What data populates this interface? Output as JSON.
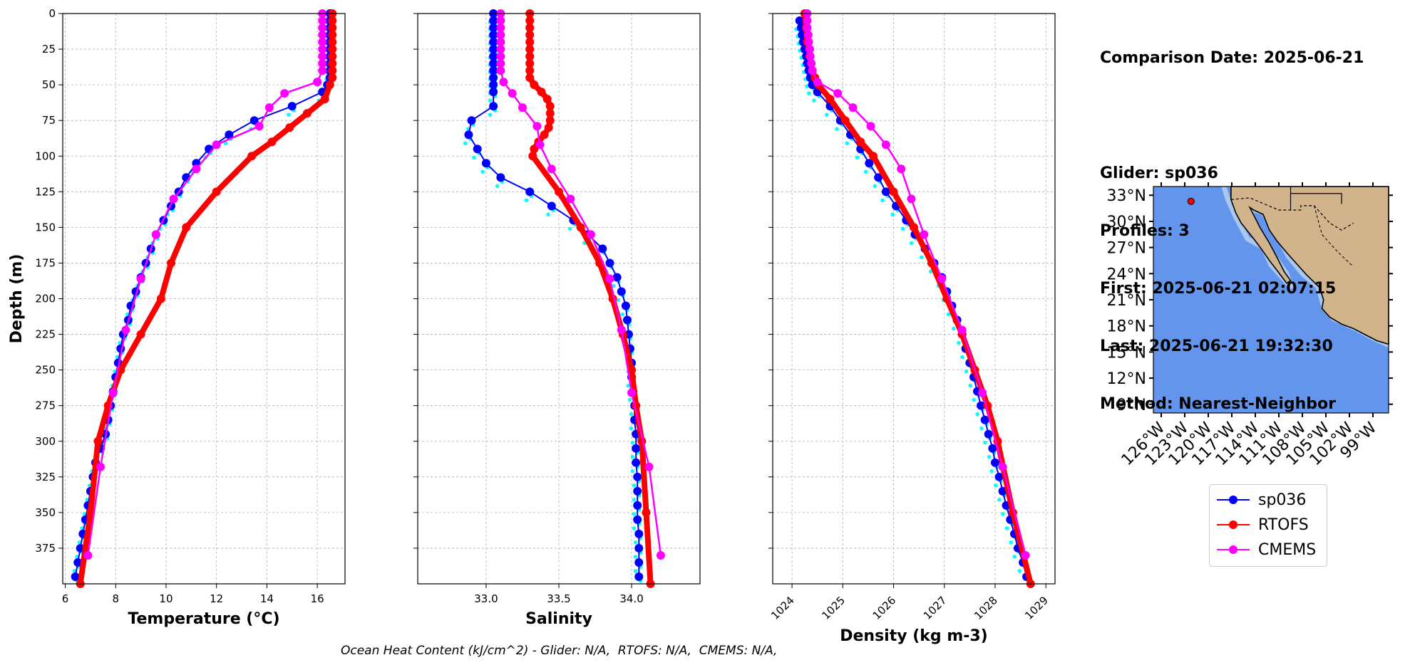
{
  "info": {
    "comparison_date": "Comparison Date: 2025-06-21",
    "glider": "Glider: sp036",
    "profiles": "Profiles: 3",
    "first": "First: 2025-06-21 02:07:15",
    "last": "Last: 2025-06-21 19:32:30",
    "method": "Method: Nearest-Neighbor"
  },
  "footer": "Ocean Heat Content (kJ/cm^2) - Glider: N/A,  RTOFS: N/A,  CMEMS: N/A,",
  "legend": [
    {
      "name": "sp036",
      "color": "#0000ff"
    },
    {
      "name": "RTOFS",
      "color": "#ff0000"
    },
    {
      "name": "CMEMS",
      "color": "#ff00ff"
    }
  ],
  "colors": {
    "glider": "#0000ff",
    "glider_dots": "#00ffff",
    "rtofs": "#ff0000",
    "cmems": "#ff00ff",
    "ocean": "#6495ed",
    "land": "#d2b48c",
    "shelf": "#a8c8f0"
  },
  "chart_data": [
    {
      "type": "line",
      "xlabel": "Temperature (°C)",
      "ylabel": "Depth (m)",
      "xlim": [
        5.9,
        17.1
      ],
      "ylim": [
        400,
        0
      ],
      "xticks": [
        "6",
        "8",
        "10",
        "12",
        "14",
        "16"
      ],
      "yticks": [
        "0",
        "25",
        "50",
        "75",
        "100",
        "125",
        "150",
        "175",
        "200",
        "225",
        "250",
        "275",
        "300",
        "325",
        "350",
        "375"
      ],
      "grid": true,
      "series": [
        {
          "name": "sp036",
          "depth": [
            0,
            5,
            10,
            15,
            20,
            25,
            30,
            35,
            40,
            45,
            50,
            55,
            65,
            75,
            85,
            95,
            105,
            115,
            125,
            135,
            145,
            155,
            165,
            175,
            185,
            195,
            205,
            215,
            225,
            235,
            245,
            255,
            265,
            275,
            285,
            295,
            305,
            315,
            325,
            335,
            345,
            355,
            365,
            375,
            385,
            395
          ],
          "values": [
            16.5,
            16.5,
            16.5,
            16.5,
            16.5,
            16.5,
            16.5,
            16.5,
            16.5,
            16.5,
            16.4,
            16.2,
            15.0,
            13.5,
            12.5,
            11.7,
            11.2,
            10.8,
            10.5,
            10.2,
            9.9,
            9.6,
            9.4,
            9.2,
            9.0,
            8.8,
            8.6,
            8.5,
            8.3,
            8.2,
            8.1,
            8.0,
            7.9,
            7.8,
            7.7,
            7.6,
            7.4,
            7.2,
            7.1,
            7.0,
            6.9,
            6.8,
            6.7,
            6.6,
            6.5,
            6.4
          ]
        },
        {
          "name": "RTOFS",
          "depth": [
            0,
            5,
            10,
            15,
            20,
            25,
            30,
            35,
            40,
            45,
            50,
            60,
            70,
            80,
            90,
            100,
            125,
            150,
            175,
            200,
            225,
            250,
            275,
            300,
            350,
            400
          ],
          "values": [
            16.6,
            16.6,
            16.6,
            16.6,
            16.6,
            16.6,
            16.6,
            16.6,
            16.6,
            16.6,
            16.5,
            16.3,
            15.6,
            14.9,
            14.2,
            13.4,
            12.0,
            10.8,
            10.2,
            9.8,
            9.0,
            8.2,
            7.7,
            7.3,
            7.0,
            6.6
          ]
        },
        {
          "name": "CMEMS",
          "depth": [
            0,
            5,
            10,
            15,
            20,
            25,
            30,
            35,
            40,
            48,
            56,
            66,
            79,
            92,
            109,
            130,
            155,
            186,
            222,
            266,
            318,
            380
          ],
          "values": [
            16.2,
            16.2,
            16.2,
            16.2,
            16.2,
            16.2,
            16.2,
            16.2,
            16.2,
            16.0,
            14.7,
            14.1,
            13.7,
            12.0,
            11.2,
            10.3,
            9.6,
            9.0,
            8.4,
            7.9,
            7.4,
            6.9
          ]
        }
      ]
    },
    {
      "type": "line",
      "xlabel": "Salinity",
      "xlim": [
        32.53,
        34.47
      ],
      "ylim": [
        400,
        0
      ],
      "xticks": [
        "33.0",
        "33.5",
        "34.0"
      ],
      "grid": true,
      "series": [
        {
          "name": "sp036",
          "depth": [
            0,
            5,
            10,
            15,
            20,
            25,
            30,
            35,
            40,
            45,
            50,
            55,
            65,
            75,
            85,
            95,
            105,
            115,
            125,
            135,
            145,
            155,
            165,
            175,
            185,
            195,
            205,
            215,
            225,
            235,
            245,
            255,
            265,
            275,
            285,
            295,
            305,
            315,
            325,
            335,
            345,
            355,
            365,
            375,
            385,
            395
          ],
          "values": [
            33.05,
            33.05,
            33.05,
            33.05,
            33.05,
            33.05,
            33.05,
            33.05,
            33.05,
            33.05,
            33.05,
            33.05,
            33.05,
            32.9,
            32.88,
            32.94,
            33.0,
            33.1,
            33.3,
            33.45,
            33.6,
            33.7,
            33.8,
            33.85,
            33.9,
            33.93,
            33.96,
            33.97,
            33.98,
            33.99,
            34.0,
            34.0,
            34.01,
            34.02,
            34.02,
            34.03,
            34.03,
            34.03,
            34.04,
            34.04,
            34.04,
            34.04,
            34.05,
            34.05,
            34.05,
            34.05
          ]
        },
        {
          "name": "RTOFS",
          "depth": [
            0,
            5,
            10,
            15,
            20,
            25,
            30,
            35,
            40,
            45,
            50,
            55,
            60,
            65,
            70,
            75,
            80,
            85,
            90,
            95,
            100,
            125,
            150,
            175,
            200,
            225,
            250,
            275,
            300,
            350,
            400
          ],
          "values": [
            33.3,
            33.3,
            33.3,
            33.3,
            33.3,
            33.3,
            33.3,
            33.3,
            33.3,
            33.3,
            33.33,
            33.38,
            33.42,
            33.44,
            33.44,
            33.44,
            33.43,
            33.4,
            33.36,
            33.33,
            33.32,
            33.5,
            33.65,
            33.78,
            33.87,
            33.94,
            34.0,
            34.03,
            34.07,
            34.1,
            34.13
          ]
        },
        {
          "name": "CMEMS",
          "depth": [
            0,
            5,
            10,
            15,
            20,
            25,
            30,
            35,
            40,
            48,
            56,
            66,
            79,
            92,
            109,
            130,
            155,
            186,
            222,
            266,
            318,
            380
          ],
          "values": [
            33.1,
            33.1,
            33.1,
            33.1,
            33.1,
            33.1,
            33.1,
            33.1,
            33.1,
            33.12,
            33.18,
            33.25,
            33.35,
            33.37,
            33.45,
            33.58,
            33.72,
            33.85,
            33.93,
            34.0,
            34.12,
            34.2
          ]
        }
      ]
    },
    {
      "type": "line",
      "xlabel": "Density (kg m-3)",
      "xlim": [
        1023.62,
        1029.18
      ],
      "ylim": [
        400,
        0
      ],
      "xticks": [
        "1024",
        "1025",
        "1026",
        "1027",
        "1028",
        "1029"
      ],
      "grid": true,
      "series": [
        {
          "name": "sp036",
          "depth": [
            5,
            10,
            15,
            20,
            25,
            30,
            35,
            40,
            45,
            50,
            55,
            65,
            75,
            85,
            95,
            105,
            115,
            125,
            135,
            145,
            155,
            165,
            175,
            185,
            195,
            205,
            215,
            225,
            235,
            245,
            255,
            265,
            275,
            285,
            295,
            305,
            315,
            325,
            335,
            345,
            355,
            365,
            375,
            385,
            395
          ],
          "values": [
            1024.15,
            1024.18,
            1024.2,
            1024.22,
            1024.25,
            1024.28,
            1024.3,
            1024.33,
            1024.36,
            1024.4,
            1024.5,
            1024.75,
            1024.95,
            1025.15,
            1025.35,
            1025.52,
            1025.7,
            1025.85,
            1026.05,
            1026.25,
            1026.42,
            1026.62,
            1026.8,
            1026.95,
            1027.05,
            1027.15,
            1027.25,
            1027.35,
            1027.42,
            1027.5,
            1027.58,
            1027.65,
            1027.72,
            1027.8,
            1027.87,
            1027.95,
            1028.0,
            1028.08,
            1028.15,
            1028.22,
            1028.3,
            1028.38,
            1028.45,
            1028.55,
            1028.62
          ]
        },
        {
          "name": "RTOFS",
          "depth": [
            0,
            10,
            20,
            30,
            40,
            45,
            50,
            60,
            75,
            90,
            100,
            125,
            150,
            175,
            200,
            225,
            250,
            275,
            300,
            350,
            400
          ],
          "values": [
            1024.25,
            1024.28,
            1024.3,
            1024.35,
            1024.4,
            1024.45,
            1024.52,
            1024.75,
            1025.05,
            1025.35,
            1025.6,
            1026.0,
            1026.4,
            1026.75,
            1027.05,
            1027.35,
            1027.6,
            1027.85,
            1028.05,
            1028.35,
            1028.7
          ]
        },
        {
          "name": "CMEMS",
          "depth": [
            0,
            5,
            10,
            15,
            20,
            25,
            30,
            35,
            40,
            48,
            56,
            66,
            79,
            92,
            109,
            130,
            155,
            186,
            222,
            266,
            318,
            380
          ],
          "values": [
            1024.3,
            1024.3,
            1024.3,
            1024.32,
            1024.33,
            1024.35,
            1024.36,
            1024.38,
            1024.4,
            1024.5,
            1024.9,
            1025.2,
            1025.55,
            1025.85,
            1026.15,
            1026.35,
            1026.6,
            1026.95,
            1027.35,
            1027.75,
            1028.15,
            1028.6
          ]
        }
      ]
    }
  ],
  "map": {
    "lon_range": [
      -127,
      -97
    ],
    "lat_range": [
      8,
      34
    ],
    "lon_ticks": [
      "126°W",
      "123°W",
      "120°W",
      "117°W",
      "114°W",
      "111°W",
      "108°W",
      "105°W",
      "102°W",
      "99°W"
    ],
    "lat_ticks": [
      "33°N",
      "30°N",
      "27°N",
      "24°N",
      "21°N",
      "18°N",
      "15°N",
      "12°N",
      "9°N"
    ],
    "glider_position": {
      "lon": -122.2,
      "lat": 32.3
    }
  }
}
